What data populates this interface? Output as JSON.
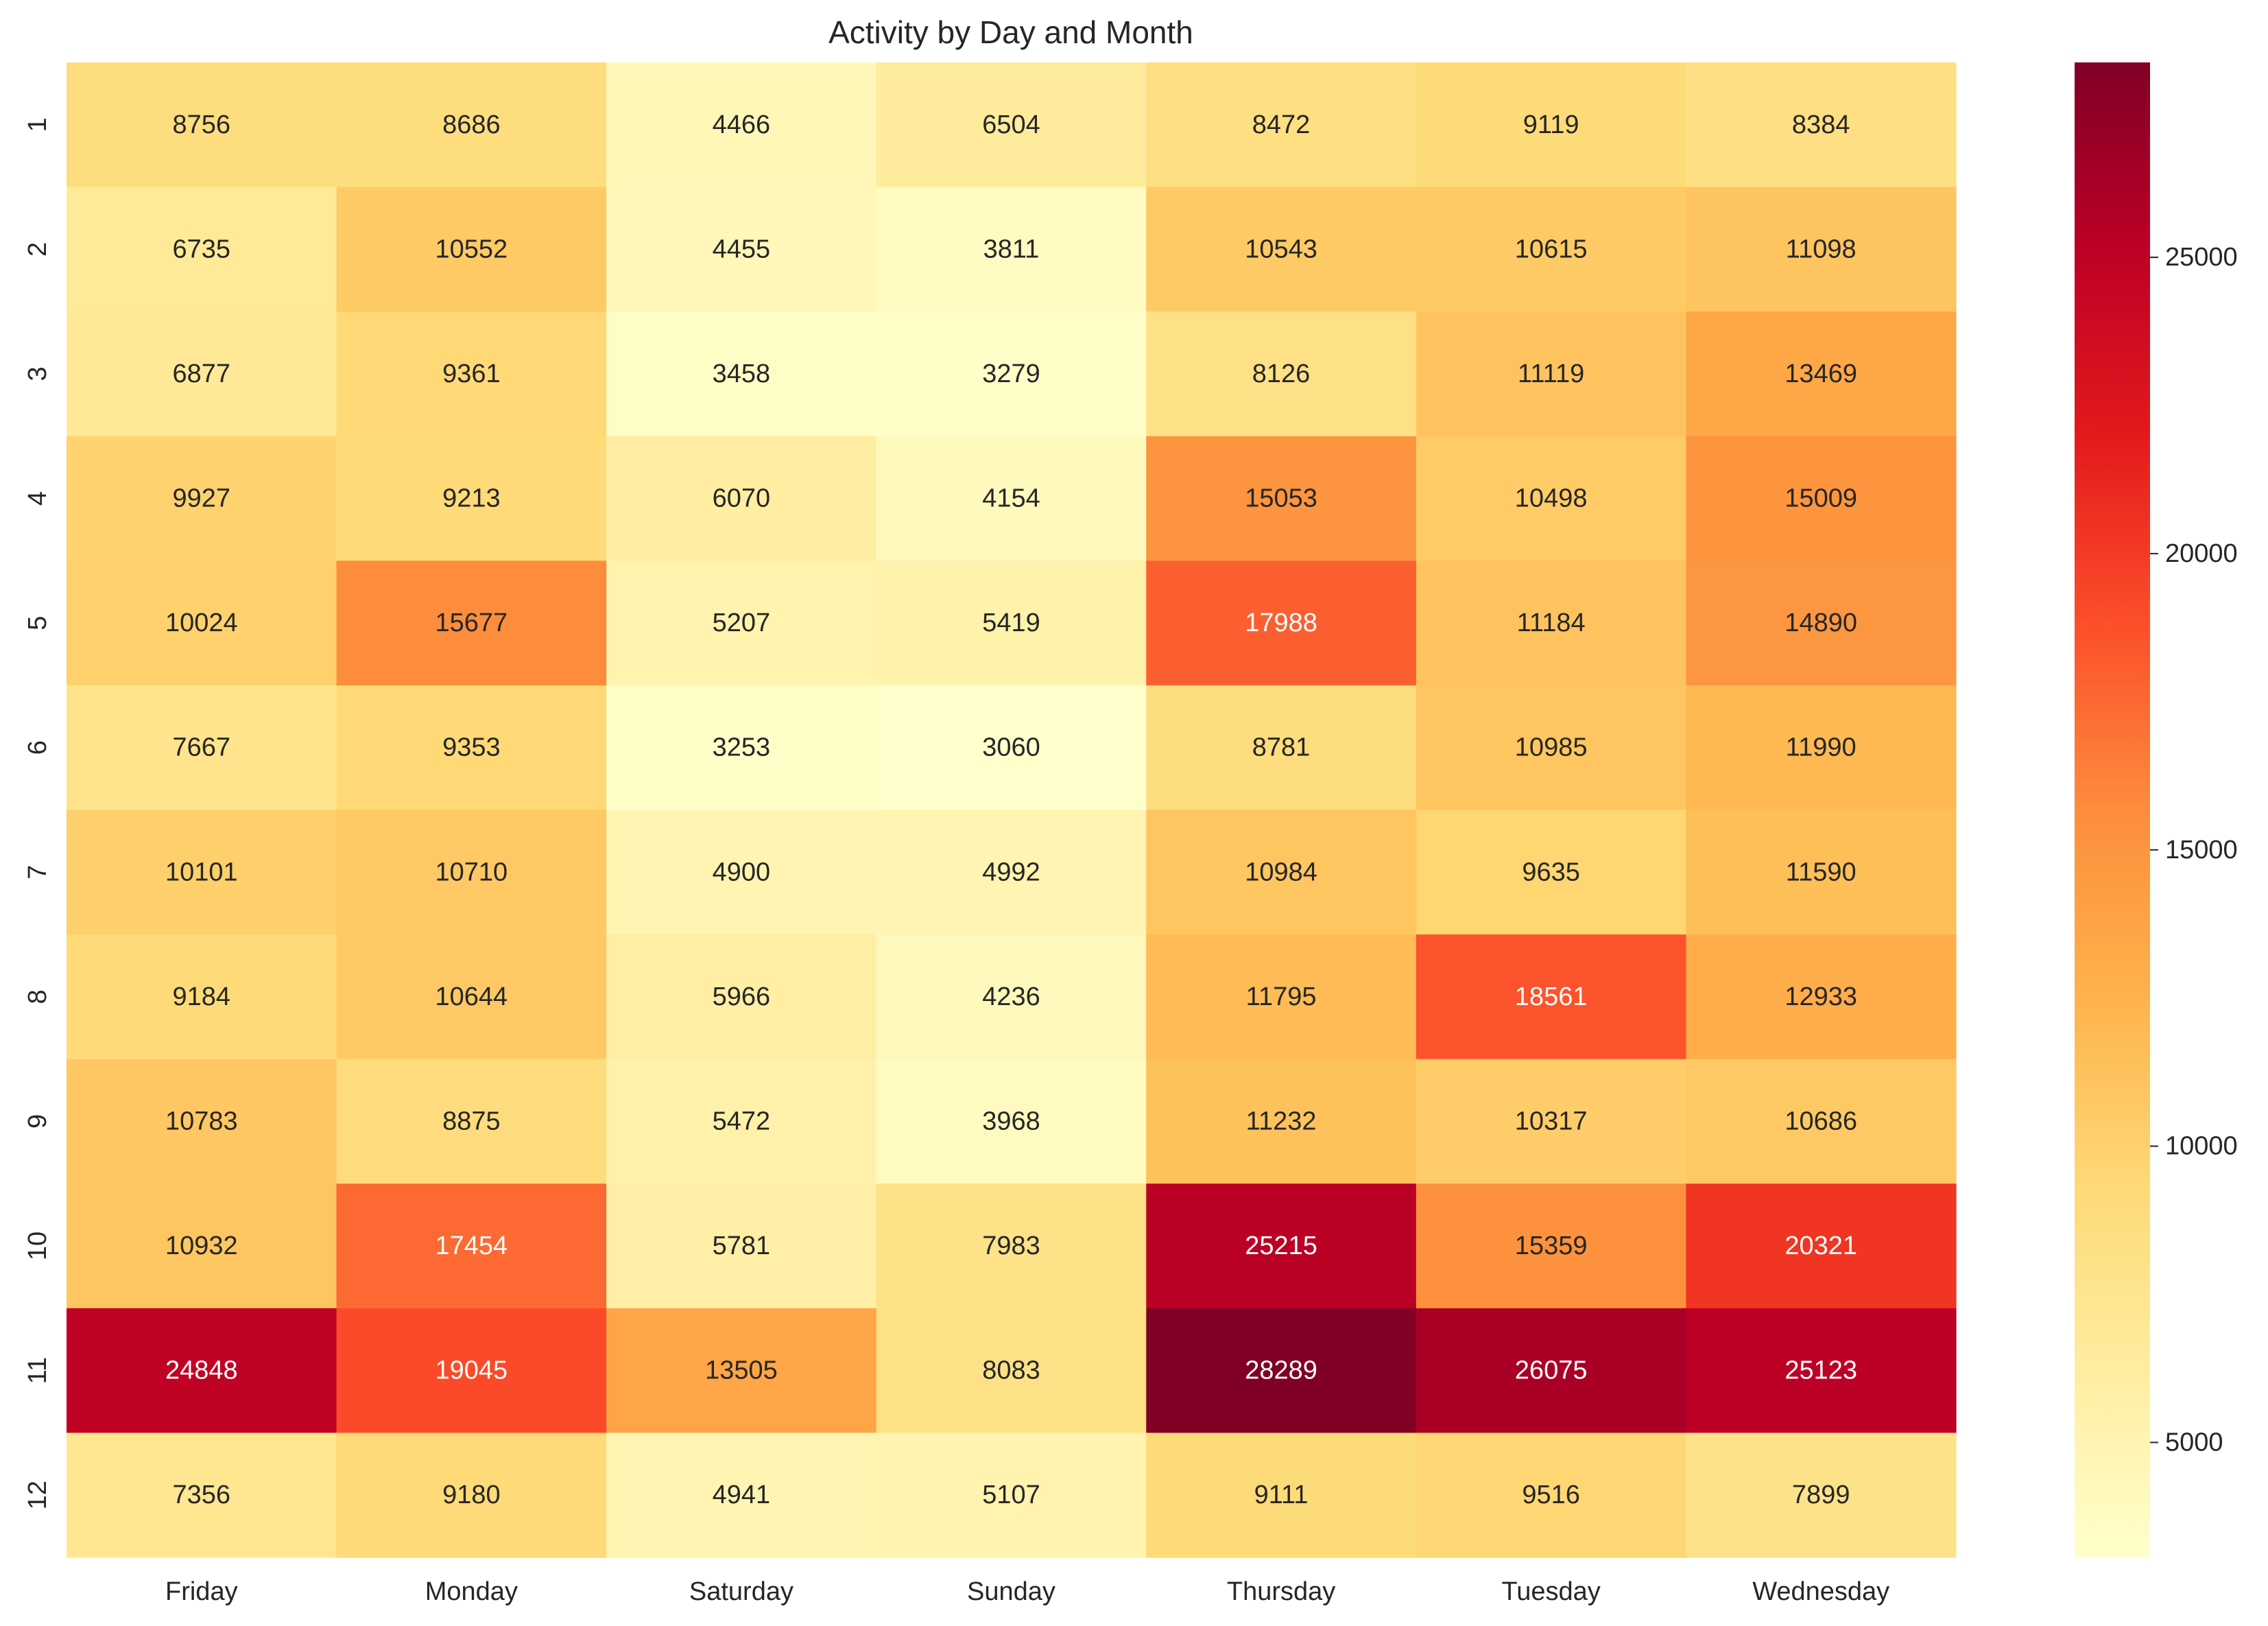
{
  "chart_data": {
    "type": "heatmap",
    "title": "Activity by Day and Month",
    "xlabel": "",
    "ylabel": "",
    "columns": [
      "Friday",
      "Monday",
      "Saturday",
      "Sunday",
      "Thursday",
      "Tuesday",
      "Wednesday"
    ],
    "rows": [
      "1",
      "2",
      "3",
      "4",
      "5",
      "6",
      "7",
      "8",
      "9",
      "10",
      "11",
      "12"
    ],
    "values": [
      [
        8756,
        8686,
        4466,
        6504,
        8472,
        9119,
        8384
      ],
      [
        6735,
        10552,
        4455,
        3811,
        10543,
        10615,
        11098
      ],
      [
        6877,
        9361,
        3458,
        3279,
        8126,
        11119,
        13469
      ],
      [
        9927,
        9213,
        6070,
        4154,
        15053,
        10498,
        15009
      ],
      [
        10024,
        15677,
        5207,
        5419,
        17988,
        11184,
        14890
      ],
      [
        7667,
        9353,
        3253,
        3060,
        8781,
        10985,
        11990
      ],
      [
        10101,
        10710,
        4900,
        4992,
        10984,
        9635,
        11590
      ],
      [
        9184,
        10644,
        5966,
        4236,
        11795,
        18561,
        12933
      ],
      [
        10783,
        8875,
        5472,
        3968,
        11232,
        10317,
        10686
      ],
      [
        10932,
        17454,
        5781,
        7983,
        25215,
        15359,
        20321
      ],
      [
        24848,
        19045,
        13505,
        8083,
        28289,
        26075,
        25123
      ],
      [
        7356,
        9180,
        4941,
        5107,
        9111,
        9516,
        7899
      ]
    ],
    "colormap": "YlOrRd",
    "color_stops": [
      "#ffffcc",
      "#ffeda0",
      "#fed976",
      "#feb24c",
      "#fd8d3c",
      "#fc4e2a",
      "#e31a1c",
      "#bd0026",
      "#800026"
    ],
    "vmin": 3060,
    "vmax": 28289,
    "colorbar": {
      "ticks": [
        5000,
        10000,
        15000,
        20000,
        25000
      ],
      "tick_labels": [
        "5000",
        "10000",
        "15000",
        "20000",
        "25000"
      ]
    },
    "annotations": true,
    "grid": false,
    "legend": "colorbar-right"
  }
}
